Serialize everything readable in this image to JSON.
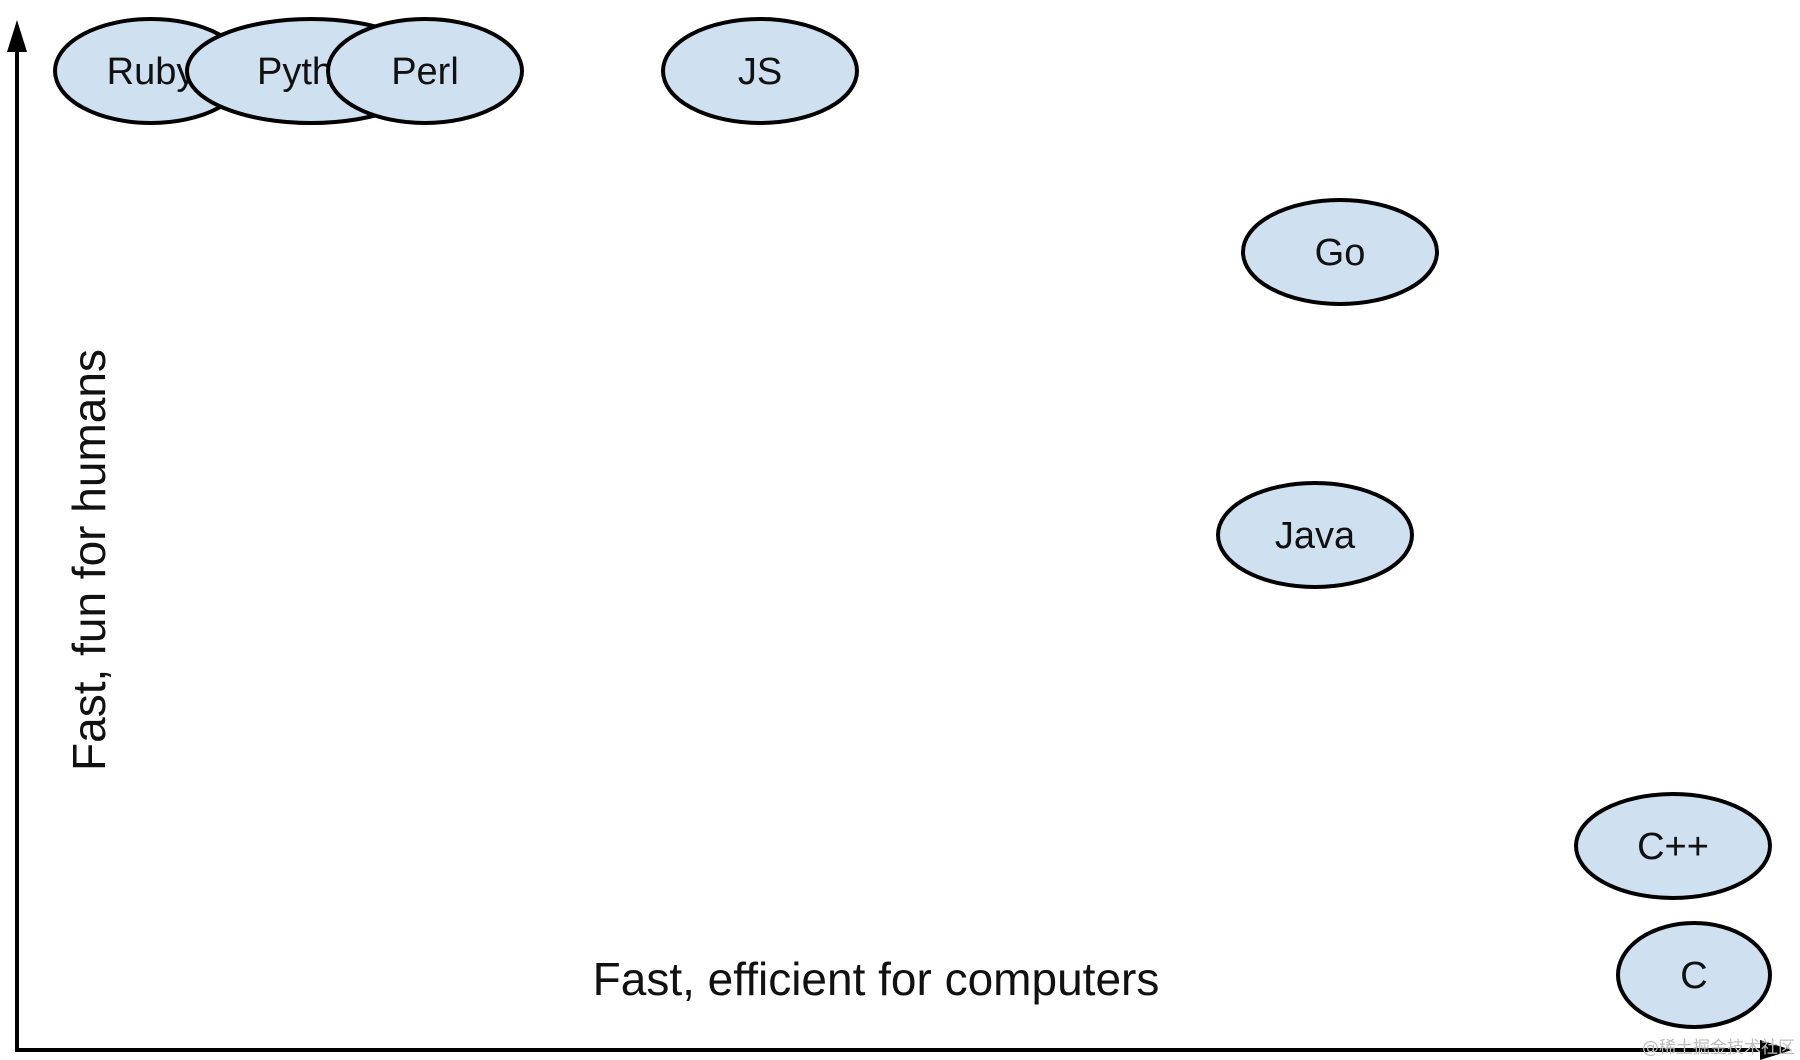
{
  "diagram": {
    "y_axis_label": "Fast, fun for humans",
    "x_axis_label": "Fast, efficient for computers",
    "watermark": "@稀土掘金技术社区",
    "bubble_fill": "#cfe0f0",
    "bubbles": [
      {
        "id": "ruby",
        "label": "Ruby"
      },
      {
        "id": "python",
        "label": "Pyth"
      },
      {
        "id": "perl",
        "label": "Perl"
      },
      {
        "id": "js",
        "label": "JS"
      },
      {
        "id": "go",
        "label": "Go"
      },
      {
        "id": "java",
        "label": "Java"
      },
      {
        "id": "cpp",
        "label": "C++"
      },
      {
        "id": "c",
        "label": "C"
      }
    ]
  }
}
